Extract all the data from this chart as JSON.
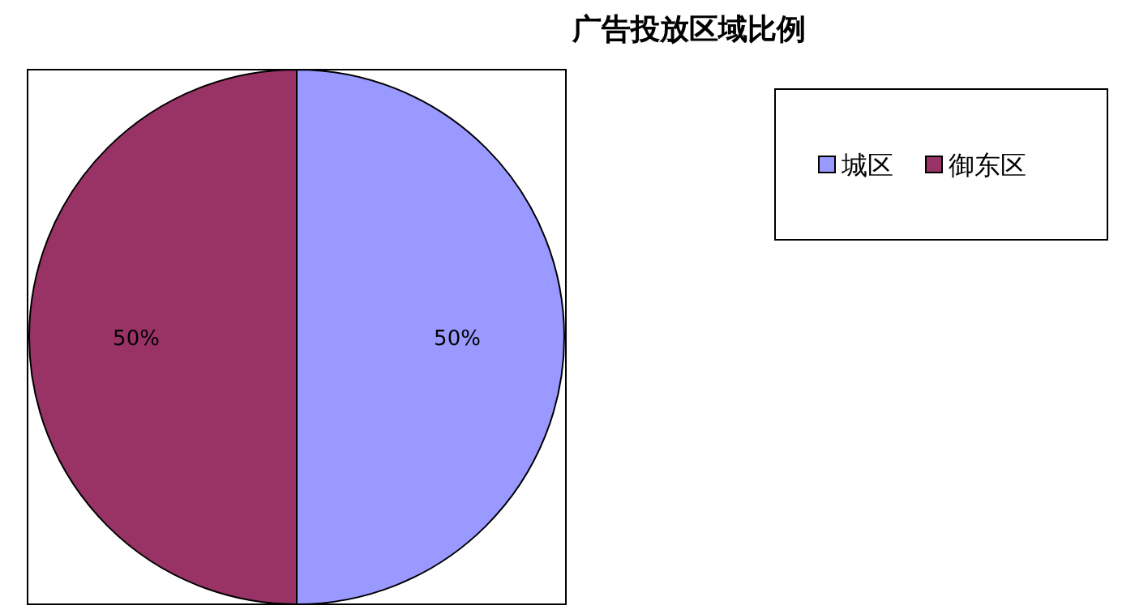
{
  "chart_data": {
    "type": "pie",
    "title": "广告投放区域比例",
    "categories": [
      "城区",
      "御东区"
    ],
    "values": [
      50,
      50
    ],
    "colors": [
      "#9999ff",
      "#993366"
    ],
    "value_labels": [
      "50%",
      "50%"
    ],
    "legend": "top right"
  }
}
